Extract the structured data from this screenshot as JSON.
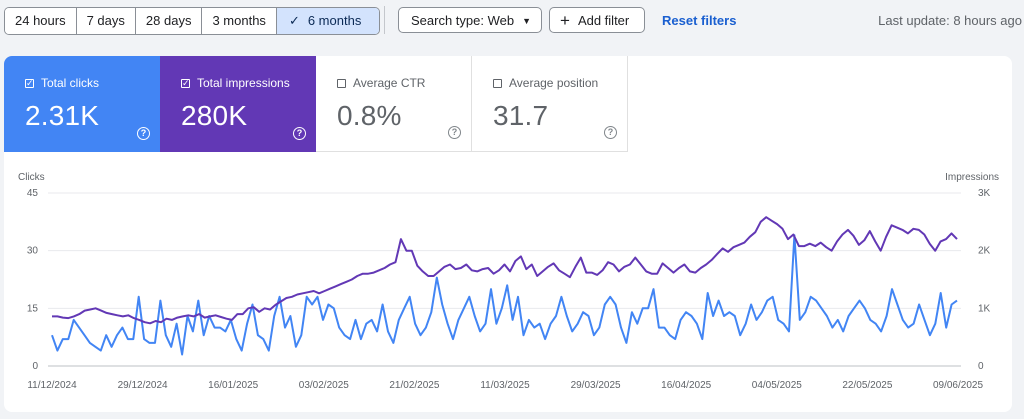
{
  "toolbar": {
    "ranges": [
      {
        "label": "24 hours",
        "selected": false
      },
      {
        "label": "7 days",
        "selected": false
      },
      {
        "label": "28 days",
        "selected": false
      },
      {
        "label": "3 months",
        "selected": false
      },
      {
        "label": "6 months",
        "selected": true
      }
    ],
    "selected_check_icon": "check-icon",
    "search_type": "Search type: Web",
    "add_filter": "Add filter",
    "reset_filters": "Reset filters",
    "last_update": "Last update: 8 hours ago"
  },
  "metrics": [
    {
      "label": "Total clicks",
      "value": "2.31K",
      "checked": true,
      "color": "#4285f4"
    },
    {
      "label": "Total impressions",
      "value": "280K",
      "checked": true,
      "color": "#6238b5"
    },
    {
      "label": "Average CTR",
      "value": "0.8%",
      "checked": false
    },
    {
      "label": "Average position",
      "value": "31.7",
      "checked": false
    }
  ],
  "help_icon_glyph": "?",
  "chart_data": {
    "type": "line",
    "left_axis": {
      "label": "Clicks",
      "ticks": [
        "45",
        "30",
        "15",
        "0"
      ],
      "range": [
        0,
        45
      ]
    },
    "right_axis": {
      "label": "Impressions",
      "ticks": [
        "3K",
        "2K",
        "1K",
        "0"
      ],
      "range": [
        0,
        3000
      ]
    },
    "x_tick_labels": [
      "11/12/2024",
      "29/12/2024",
      "16/01/2025",
      "03/02/2025",
      "21/02/2025",
      "11/03/2025",
      "29/03/2025",
      "16/04/2025",
      "04/05/2025",
      "22/05/2025",
      "09/06/2025"
    ],
    "grid": true,
    "series": [
      {
        "name": "Clicks",
        "axis": "left",
        "color": "#4285f4",
        "values": [
          8,
          4,
          7,
          7,
          12,
          10,
          8,
          6,
          5,
          4,
          8,
          5,
          8,
          10,
          7,
          7,
          18,
          7,
          6,
          6,
          17,
          8,
          5,
          11,
          3,
          13,
          9,
          17,
          8,
          13,
          10,
          10,
          9,
          12,
          7,
          4,
          11,
          16,
          8,
          7,
          4,
          13,
          18,
          10,
          13,
          5,
          8,
          18,
          16,
          18,
          12,
          16,
          15,
          10,
          8,
          7,
          12,
          7,
          11,
          12,
          9,
          16,
          9,
          6,
          12,
          15,
          18,
          11,
          8,
          10,
          14,
          23,
          16,
          11,
          7,
          12,
          15,
          18,
          13,
          9,
          11,
          20,
          11,
          15,
          21,
          12,
          18,
          8,
          12,
          10,
          11,
          7,
          11,
          13,
          18,
          13,
          9,
          11,
          14,
          13,
          8,
          10,
          16,
          18,
          16,
          10,
          6,
          14,
          11,
          15,
          15,
          20,
          10,
          10,
          8,
          7,
          12,
          14,
          13,
          11,
          7,
          19,
          13,
          17,
          13,
          14,
          13,
          8,
          11,
          16,
          12,
          14,
          17,
          18,
          12,
          11,
          9,
          34,
          12,
          14,
          18,
          17,
          15,
          13,
          10,
          12,
          9,
          13,
          15,
          17,
          15,
          12,
          11,
          9,
          13,
          20,
          16,
          12,
          10,
          11,
          16,
          12,
          8,
          11,
          19,
          10,
          16,
          17
        ]
      },
      {
        "name": "Impressions",
        "axis": "right",
        "color": "#6238b5",
        "values": [
          860,
          860,
          840,
          830,
          860,
          900,
          960,
          980,
          1000,
          960,
          920,
          900,
          880,
          860,
          880,
          830,
          800,
          760,
          740,
          780,
          760,
          820,
          800,
          840,
          860,
          880,
          860,
          900,
          840,
          860,
          880,
          850,
          820,
          800,
          900,
          900,
          1000,
          1020,
          940,
          1000,
          980,
          1060,
          1120,
          1180,
          1200,
          1240,
          1260,
          1280,
          1300,
          1260,
          1300,
          1340,
          1380,
          1420,
          1460,
          1500,
          1560,
          1600,
          1600,
          1620,
          1660,
          1700,
          1760,
          1800,
          2200,
          2000,
          2000,
          1740,
          1640,
          1560,
          1560,
          1640,
          1720,
          1760,
          1680,
          1700,
          1760,
          1660,
          1640,
          1680,
          1700,
          1600,
          1660,
          1760,
          1640,
          1820,
          1900,
          1680,
          1760,
          1560,
          1640,
          1720,
          1780,
          1660,
          1600,
          1540,
          1720,
          1880,
          1620,
          1620,
          1580,
          1660,
          1800,
          1760,
          1640,
          1720,
          1760,
          1880,
          1760,
          1640,
          1600,
          1600,
          1780,
          1700,
          1620,
          1700,
          1760,
          1640,
          1620,
          1700,
          1760,
          1840,
          1940,
          2040,
          1980,
          2060,
          2100,
          2140,
          2240,
          2320,
          2500,
          2580,
          2520,
          2460,
          2380,
          2200,
          2280,
          2080,
          2080,
          2120,
          2080,
          2140,
          2060,
          2000,
          2160,
          2280,
          2360,
          2260,
          2100,
          2180,
          2340,
          2160,
          2000,
          2240,
          2440,
          2400,
          2360,
          2300,
          2380,
          2360,
          2280,
          2120,
          2000,
          2160,
          2200,
          2300,
          2200
        ]
      }
    ]
  }
}
